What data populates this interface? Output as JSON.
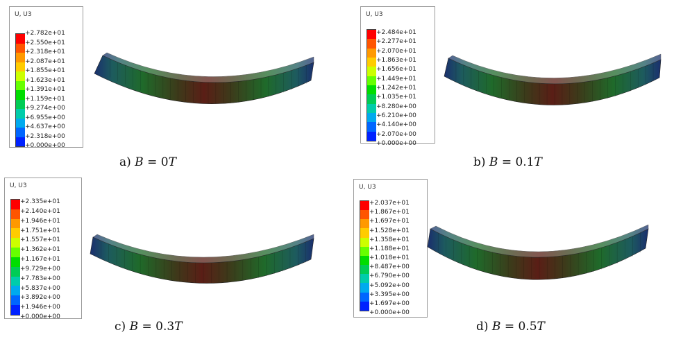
{
  "colors": [
    "#ff0000",
    "#ff5500",
    "#ff9900",
    "#ffcc00",
    "#ccff00",
    "#66ff00",
    "#00dd00",
    "#00cc55",
    "#00ccaa",
    "#00aaee",
    "#0066ff",
    "#0022ff"
  ],
  "panels": [
    {
      "id": "a",
      "legend_title": "U, U3",
      "labels": [
        "+2.782e+01",
        "+2.550e+01",
        "+2.318e+01",
        "+2.087e+01",
        "+1.855e+01",
        "+1.623e+01",
        "+1.391e+01",
        "+1.159e+01",
        "+9.274e+00",
        "+6.955e+00",
        "+4.637e+00",
        "+2.318e+00",
        "+0.000e+00"
      ],
      "caption_prefix": "a) ",
      "caption_math": "B",
      "caption_eq": " = ",
      "caption_value": "0",
      "caption_unit": "T"
    },
    {
      "id": "b",
      "legend_title": "U, U3",
      "labels": [
        "+2.484e+01",
        "+2.277e+01",
        "+2.070e+01",
        "+1.863e+01",
        "+1.656e+01",
        "+1.449e+01",
        "+1.242e+01",
        "+1.035e+01",
        "+8.280e+00",
        "+6.210e+00",
        "+4.140e+00",
        "+2.070e+00",
        "+0.000e+00"
      ],
      "caption_prefix": "b) ",
      "caption_math": "B",
      "caption_eq": " = ",
      "caption_value": "0.1",
      "caption_unit": "T"
    },
    {
      "id": "c",
      "legend_title": "U, U3",
      "labels": [
        "+2.335e+01",
        "+2.140e+01",
        "+1.946e+01",
        "+1.751e+01",
        "+1.557e+01",
        "+1.362e+01",
        "+1.167e+01",
        "+9.729e+00",
        "+7.783e+00",
        "+5.837e+00",
        "+3.892e+00",
        "+1.946e+00",
        "+0.000e+00"
      ],
      "caption_prefix": "c) ",
      "caption_math": "B",
      "caption_eq": " = ",
      "caption_value": "0.3",
      "caption_unit": "T"
    },
    {
      "id": "d",
      "legend_title": "U, U3",
      "labels": [
        "+2.037e+01",
        "+1.867e+01",
        "+1.697e+01",
        "+1.528e+01",
        "+1.358e+01",
        "+1.188e+01",
        "+1.018e+01",
        "+8.487e+00",
        "+6.790e+00",
        "+5.092e+00",
        "+3.395e+00",
        "+1.697e+00",
        "+0.000e+00"
      ],
      "caption_prefix": "d) ",
      "caption_math": "B",
      "caption_eq": " = ",
      "caption_value": "0.5",
      "caption_unit": "T"
    }
  ]
}
